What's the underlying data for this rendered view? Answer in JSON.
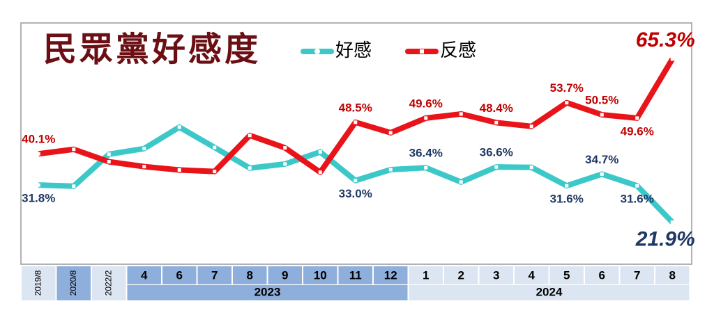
{
  "chart_data": {
    "type": "line",
    "title": "民眾黨好感度",
    "categories": [
      "2019/8",
      "2020/8",
      "2022/2",
      "4",
      "6",
      "7",
      "8",
      "9",
      "10",
      "11",
      "12",
      "1",
      "2",
      "3",
      "4",
      "5",
      "6",
      "7",
      "8"
    ],
    "year_groups": [
      {
        "label": "2023",
        "from": 3,
        "to": 10
      },
      {
        "label": "2024",
        "from": 11,
        "to": 18
      }
    ],
    "ylim": [
      15,
      75
    ],
    "series": [
      {
        "name": "好感",
        "color": "#3cc8c8",
        "values": [
          31.8,
          31.5,
          40.0,
          41.5,
          47.2,
          41.8,
          36.3,
          37.4,
          40.6,
          33.0,
          35.9,
          36.4,
          32.6,
          36.6,
          36.5,
          31.6,
          34.7,
          31.6,
          21.9
        ],
        "value_labels": [
          "31.8%",
          null,
          null,
          null,
          null,
          null,
          null,
          null,
          null,
          "33.0%",
          null,
          "36.4%",
          null,
          "36.6%",
          null,
          "31.6%",
          "34.7%",
          "31.6%",
          "21.9%"
        ]
      },
      {
        "name": "反感",
        "color": "#e8141a",
        "values": [
          40.1,
          41.3,
          38.0,
          36.7,
          35.8,
          35.4,
          45.0,
          41.7,
          35.2,
          48.5,
          45.7,
          49.6,
          50.7,
          48.4,
          47.4,
          53.7,
          50.5,
          49.6,
          65.3
        ],
        "value_labels": [
          "40.1%",
          null,
          null,
          null,
          null,
          null,
          null,
          null,
          null,
          "48.5%",
          null,
          "49.6%",
          null,
          "48.4%",
          null,
          "53.7%",
          "50.5%",
          "49.6%",
          "65.3%"
        ]
      }
    ]
  }
}
